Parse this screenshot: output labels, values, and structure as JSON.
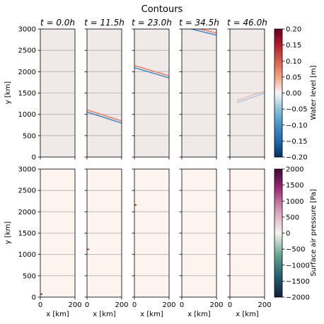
{
  "chart_data": {
    "type": "heatmap",
    "title": "Contours",
    "time_labels": [
      "t = 0.0h",
      "t = 11.5h",
      "t = 23.0h",
      "t = 34.5h",
      "t = 46.0h"
    ],
    "rows": [
      {
        "variable": "water_level",
        "ylabel": "y [km]",
        "yticks": [
          "0",
          "500",
          "1000",
          "1500",
          "2000",
          "2500",
          "3000"
        ],
        "xticks": [],
        "xlabel": "",
        "colorbar": {
          "label": "Water level [m]",
          "ticks": [
            "0.20",
            "0.15",
            "0.10",
            "0.05",
            "0.00",
            "−0.05",
            "−0.10",
            "−0.15",
            "−0.20"
          ],
          "range": [
            -0.2,
            0.2
          ],
          "colormap": "RdBu_r"
        }
      },
      {
        "variable": "surface_air_pressure",
        "ylabel": "y [km]",
        "yticks": [
          "0",
          "500",
          "1000",
          "1500",
          "2000",
          "2500",
          "3000"
        ],
        "xticks": [
          "0",
          "200"
        ],
        "xlabel": "x [km]",
        "colorbar": {
          "label": "Surface air pressure [Pa]",
          "ticks": [
            "2000",
            "1500",
            "1000",
            "500",
            "0",
            "−500",
            "−1000",
            "−1500",
            "−2000"
          ],
          "range": [
            -2000,
            2000
          ],
          "colormap": "PuRd-diverging"
        }
      }
    ],
    "x_range": [
      0,
      200
    ],
    "y_range": [
      0,
      3000
    ],
    "grid": "horizontal",
    "background_colors": {
      "water_level": "#efe9e8",
      "surface_air_pressure": "#fdf3ef"
    },
    "wave_fronts": [
      {
        "panel": 1,
        "x": [
          0,
          200
        ],
        "y_center": [
          1080,
          820
        ]
      },
      {
        "panel": 2,
        "x": [
          0,
          200
        ],
        "y_center": [
          2120,
          1880
        ]
      },
      {
        "panel": 3,
        "x": [
          0,
          200
        ],
        "y_center": [
          3080,
          2880
        ]
      },
      {
        "panel": 4,
        "x": [
          40,
          200
        ],
        "y_center": [
          1300,
          1520
        ],
        "faint": true
      }
    ],
    "pressure_spots": [
      {
        "panel": 0,
        "x": 6,
        "y": 70
      },
      {
        "panel": 1,
        "x": 6,
        "y": 1120
      },
      {
        "panel": 2,
        "x": 6,
        "y": 2160
      }
    ]
  }
}
